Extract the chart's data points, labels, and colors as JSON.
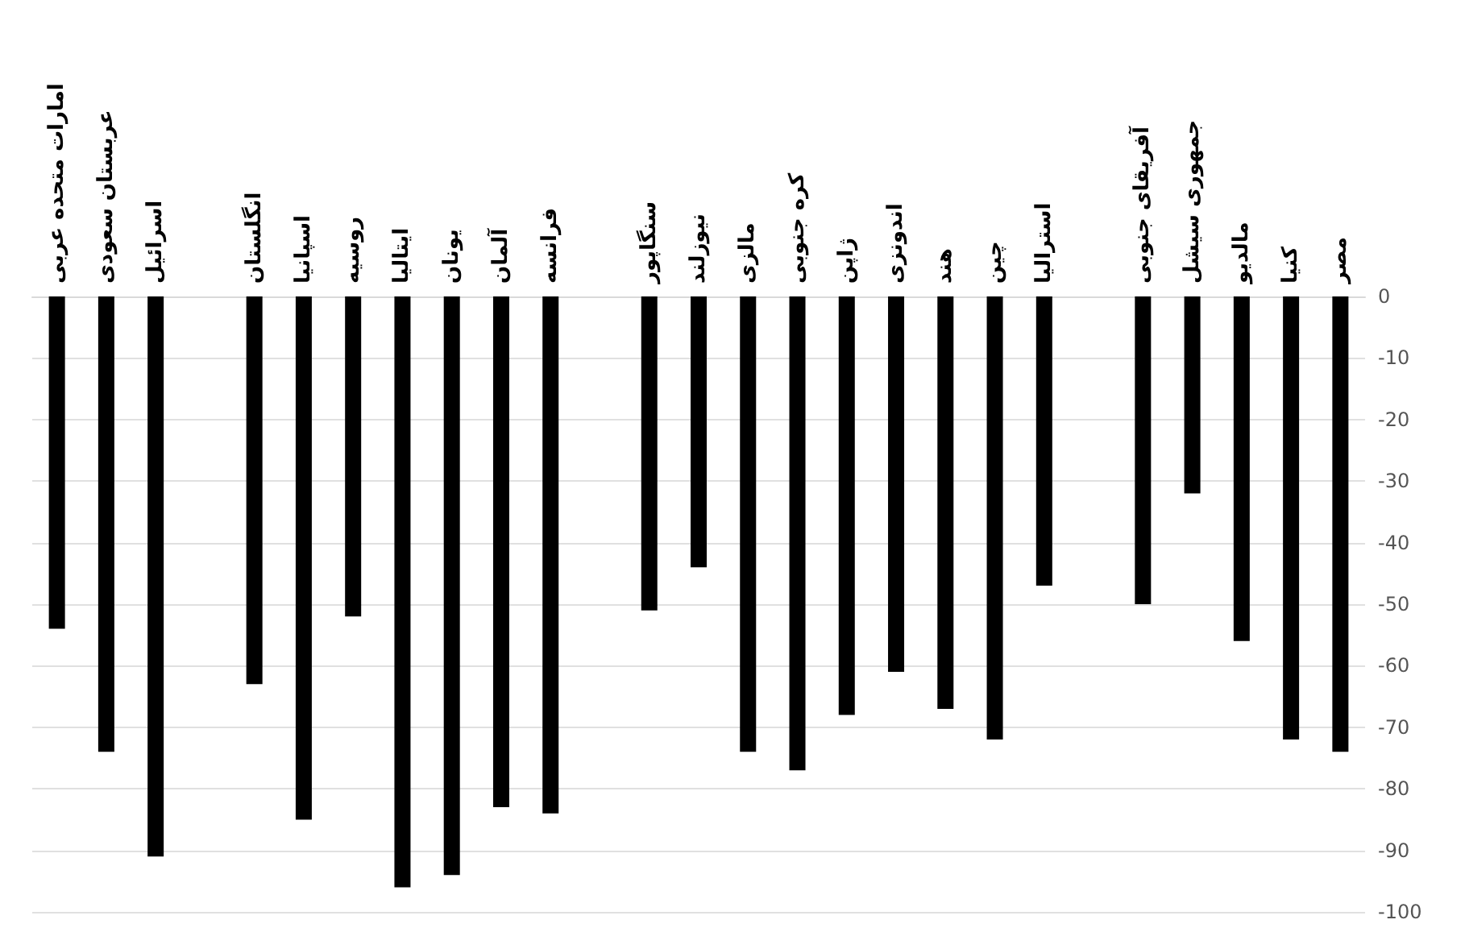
{
  "chart_data": {
    "type": "bar",
    "color": "#000000",
    "categories": [
      "امارات متحده عربی",
      "عربستان سعودی",
      "اسرائیل",
      null,
      "انگلستان",
      "اسپانیا",
      "روسیه",
      "ایتالیا",
      "یونان",
      "آلمان",
      "فرانسه",
      null,
      "سنگاپور",
      "نیوزلند",
      "مالزی",
      "کره جنوبی",
      "ژاپن",
      "اندونزی",
      "هند",
      "چین",
      "استرالیا",
      null,
      "آفریقای جنوبی",
      "جمهوری سیشل",
      "مالدیو",
      "کنیا",
      "مصر"
    ],
    "values": [
      -54,
      -74,
      -91,
      null,
      -63,
      -85,
      -52,
      -96,
      -94,
      -83,
      -84,
      null,
      -51,
      -44,
      -74,
      -77,
      -68,
      -61,
      -67,
      -72,
      -47,
      null,
      -50,
      -32,
      -56,
      -72,
      -74
    ],
    "ylim": [
      -100,
      0
    ],
    "yticks": [
      -100,
      -90,
      -80,
      -70,
      -60,
      -50,
      -40,
      -30,
      -20,
      -10,
      0
    ],
    "grid": "y"
  }
}
